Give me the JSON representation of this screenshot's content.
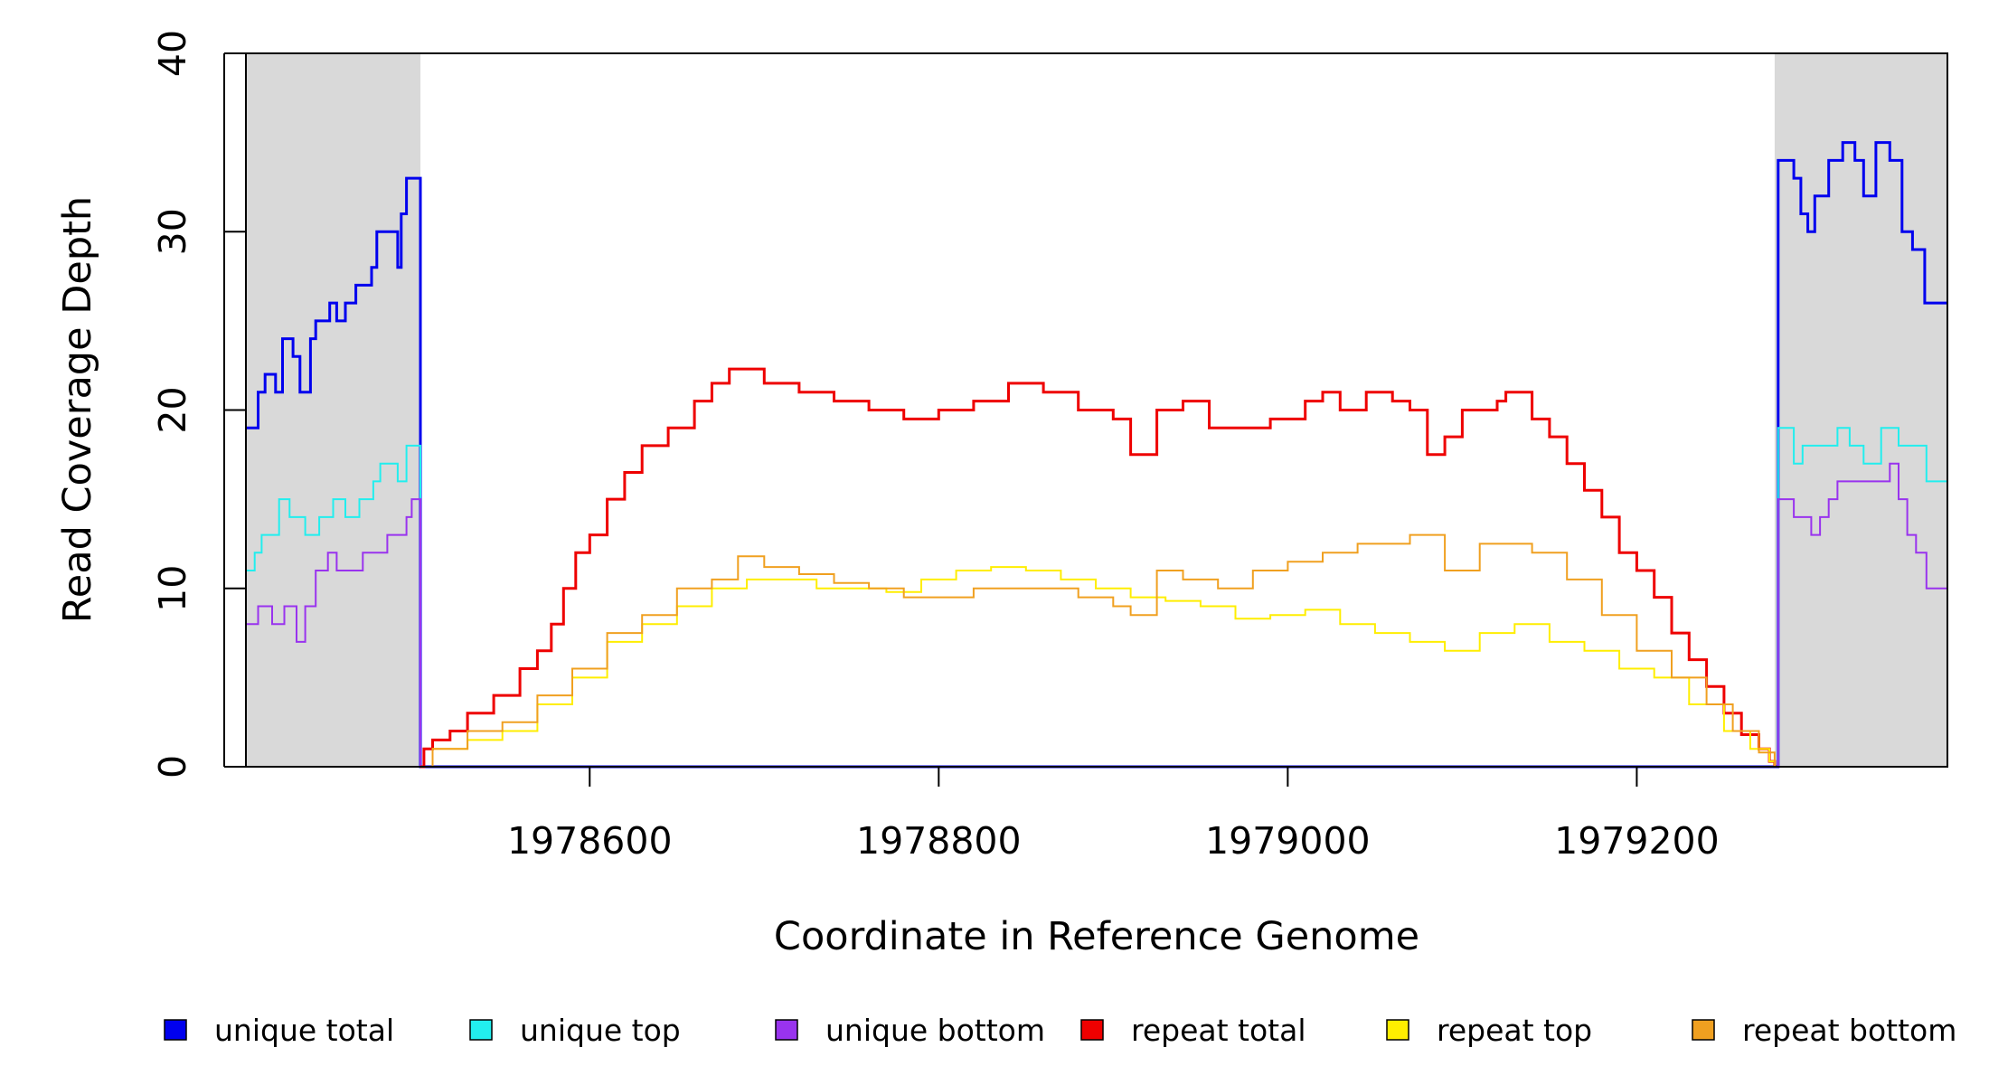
{
  "chart_data": {
    "type": "line",
    "title": "",
    "xlabel": "Coordinate in Reference Genome",
    "ylabel": "Read Coverage Depth",
    "xlim": [
      1978403,
      1979378
    ],
    "ylim": [
      0,
      40
    ],
    "x_ticks": [
      1978600,
      1978800,
      1979000,
      1979200
    ],
    "y_ticks": [
      0,
      10,
      20,
      30,
      40
    ],
    "grid": false,
    "legend_position": "bottom",
    "shaded_regions": [
      {
        "from": 1978403,
        "to": 1978503,
        "color": "#d9d9d9"
      },
      {
        "from": 1979279,
        "to": 1979378,
        "color": "#d9d9d9"
      }
    ],
    "series": [
      {
        "name": "unique total",
        "color": "#0000ee",
        "width": 3,
        "points": [
          [
            1978403,
            19
          ],
          [
            1978410,
            21
          ],
          [
            1978414,
            22
          ],
          [
            1978420,
            21
          ],
          [
            1978424,
            24
          ],
          [
            1978430,
            23
          ],
          [
            1978434,
            21
          ],
          [
            1978440,
            24
          ],
          [
            1978443,
            25
          ],
          [
            1978451,
            26
          ],
          [
            1978455,
            25
          ],
          [
            1978460,
            26
          ],
          [
            1978466,
            27
          ],
          [
            1978475,
            28
          ],
          [
            1978478,
            30
          ],
          [
            1978490,
            28
          ],
          [
            1978492,
            31
          ],
          [
            1978495,
            33
          ],
          [
            1978502,
            33
          ],
          [
            1978503,
            0
          ],
          [
            1979280,
            0
          ],
          [
            1979281,
            34
          ],
          [
            1979290,
            33
          ],
          [
            1979294,
            31
          ],
          [
            1979298,
            30
          ],
          [
            1979302,
            32
          ],
          [
            1979310,
            34
          ],
          [
            1979318,
            35
          ],
          [
            1979325,
            34
          ],
          [
            1979330,
            32
          ],
          [
            1979337,
            35
          ],
          [
            1979345,
            34
          ],
          [
            1979352,
            30
          ],
          [
            1979358,
            29
          ],
          [
            1979365,
            26
          ],
          [
            1979378,
            26
          ]
        ]
      },
      {
        "name": "unique top",
        "color": "#22eeee",
        "width": 2,
        "points": [
          [
            1978403,
            11
          ],
          [
            1978408,
            12
          ],
          [
            1978412,
            13
          ],
          [
            1978422,
            15
          ],
          [
            1978428,
            14
          ],
          [
            1978437,
            13
          ],
          [
            1978445,
            14
          ],
          [
            1978453,
            15
          ],
          [
            1978460,
            14
          ],
          [
            1978468,
            15
          ],
          [
            1978476,
            16
          ],
          [
            1978480,
            17
          ],
          [
            1978490,
            16
          ],
          [
            1978495,
            18
          ],
          [
            1978502,
            18
          ],
          [
            1978503,
            0
          ],
          [
            1979280,
            0
          ],
          [
            1979281,
            19
          ],
          [
            1979290,
            17
          ],
          [
            1979295,
            18
          ],
          [
            1979305,
            18
          ],
          [
            1979315,
            19
          ],
          [
            1979322,
            18
          ],
          [
            1979330,
            17
          ],
          [
            1979340,
            19
          ],
          [
            1979350,
            18
          ],
          [
            1979360,
            18
          ],
          [
            1979366,
            16
          ],
          [
            1979378,
            16
          ]
        ]
      },
      {
        "name": "unique bottom",
        "color": "#9933ee",
        "width": 2,
        "points": [
          [
            1978403,
            8
          ],
          [
            1978410,
            9
          ],
          [
            1978418,
            8
          ],
          [
            1978425,
            9
          ],
          [
            1978432,
            7
          ],
          [
            1978437,
            9
          ],
          [
            1978443,
            11
          ],
          [
            1978450,
            12
          ],
          [
            1978455,
            11
          ],
          [
            1978462,
            11
          ],
          [
            1978470,
            12
          ],
          [
            1978478,
            12
          ],
          [
            1978484,
            13
          ],
          [
            1978495,
            14
          ],
          [
            1978498,
            15
          ],
          [
            1978502,
            15
          ],
          [
            1978503,
            0
          ],
          [
            1979280,
            0
          ],
          [
            1979281,
            15
          ],
          [
            1979290,
            14
          ],
          [
            1979300,
            13
          ],
          [
            1979305,
            14
          ],
          [
            1979310,
            15
          ],
          [
            1979315,
            16
          ],
          [
            1979330,
            16
          ],
          [
            1979340,
            16
          ],
          [
            1979345,
            17
          ],
          [
            1979350,
            15
          ],
          [
            1979355,
            13
          ],
          [
            1979360,
            12
          ],
          [
            1979366,
            10
          ],
          [
            1979378,
            10
          ]
        ]
      },
      {
        "name": "repeat total",
        "color": "#ee0000",
        "width": 3,
        "points": [
          [
            1978503,
            0
          ],
          [
            1978505,
            1
          ],
          [
            1978510,
            1.5
          ],
          [
            1978520,
            2
          ],
          [
            1978530,
            3
          ],
          [
            1978545,
            4
          ],
          [
            1978560,
            5.5
          ],
          [
            1978570,
            6.5
          ],
          [
            1978578,
            8
          ],
          [
            1978585,
            10
          ],
          [
            1978592,
            12
          ],
          [
            1978600,
            13
          ],
          [
            1978610,
            15
          ],
          [
            1978620,
            16.5
          ],
          [
            1978630,
            18
          ],
          [
            1978645,
            19
          ],
          [
            1978660,
            20.5
          ],
          [
            1978670,
            21.5
          ],
          [
            1978680,
            22.3
          ],
          [
            1978690,
            22.3
          ],
          [
            1978700,
            21.5
          ],
          [
            1978720,
            21
          ],
          [
            1978740,
            20.5
          ],
          [
            1978760,
            20
          ],
          [
            1978780,
            19.5
          ],
          [
            1978800,
            20
          ],
          [
            1978820,
            20.5
          ],
          [
            1978840,
            21.5
          ],
          [
            1978860,
            21
          ],
          [
            1978880,
            20
          ],
          [
            1978900,
            19.5
          ],
          [
            1978910,
            17.5
          ],
          [
            1978925,
            20
          ],
          [
            1978940,
            20.5
          ],
          [
            1978955,
            19
          ],
          [
            1978970,
            19
          ],
          [
            1978990,
            19.5
          ],
          [
            1979010,
            20.5
          ],
          [
            1979020,
            21
          ],
          [
            1979030,
            20
          ],
          [
            1979045,
            21
          ],
          [
            1979060,
            20.5
          ],
          [
            1979070,
            20
          ],
          [
            1979080,
            17.5
          ],
          [
            1979090,
            18.5
          ],
          [
            1979100,
            20
          ],
          [
            1979120,
            20.5
          ],
          [
            1979125,
            21
          ],
          [
            1979140,
            19.5
          ],
          [
            1979150,
            18.5
          ],
          [
            1979160,
            17
          ],
          [
            1979170,
            15.5
          ],
          [
            1979180,
            14
          ],
          [
            1979190,
            12
          ],
          [
            1979200,
            11
          ],
          [
            1979210,
            9.5
          ],
          [
            1979220,
            7.5
          ],
          [
            1979230,
            6
          ],
          [
            1979240,
            4.5
          ],
          [
            1979250,
            3
          ],
          [
            1979260,
            1.8
          ],
          [
            1979270,
            1
          ],
          [
            1979276,
            0.3
          ],
          [
            1979279,
            0
          ]
        ]
      },
      {
        "name": "repeat top",
        "color": "#ffee00",
        "width": 2,
        "points": [
          [
            1978503,
            0
          ],
          [
            1978510,
            1
          ],
          [
            1978530,
            1.5
          ],
          [
            1978550,
            2
          ],
          [
            1978570,
            3.5
          ],
          [
            1978590,
            5
          ],
          [
            1978610,
            7
          ],
          [
            1978630,
            8
          ],
          [
            1978650,
            9
          ],
          [
            1978670,
            10
          ],
          [
            1978690,
            10.5
          ],
          [
            1978710,
            10.5
          ],
          [
            1978730,
            10
          ],
          [
            1978750,
            10
          ],
          [
            1978770,
            9.8
          ],
          [
            1978790,
            10.5
          ],
          [
            1978810,
            11
          ],
          [
            1978830,
            11.2
          ],
          [
            1978850,
            11
          ],
          [
            1978870,
            10.5
          ],
          [
            1978890,
            10
          ],
          [
            1978910,
            9.5
          ],
          [
            1978930,
            9.3
          ],
          [
            1978950,
            9
          ],
          [
            1978970,
            8.3
          ],
          [
            1978990,
            8.5
          ],
          [
            1979010,
            8.8
          ],
          [
            1979030,
            8
          ],
          [
            1979050,
            7.5
          ],
          [
            1979070,
            7
          ],
          [
            1979090,
            6.5
          ],
          [
            1979110,
            7.5
          ],
          [
            1979130,
            8
          ],
          [
            1979150,
            7
          ],
          [
            1979170,
            6.5
          ],
          [
            1979190,
            5.5
          ],
          [
            1979210,
            5
          ],
          [
            1979230,
            3.5
          ],
          [
            1979250,
            2
          ],
          [
            1979265,
            1
          ],
          [
            1979276,
            0.3
          ],
          [
            1979279,
            0
          ]
        ]
      },
      {
        "name": "repeat bottom",
        "color": "#f0a020",
        "width": 2,
        "points": [
          [
            1978503,
            0
          ],
          [
            1978510,
            1
          ],
          [
            1978530,
            2
          ],
          [
            1978550,
            2.5
          ],
          [
            1978570,
            4
          ],
          [
            1978590,
            5.5
          ],
          [
            1978610,
            7.5
          ],
          [
            1978630,
            8.5
          ],
          [
            1978650,
            10
          ],
          [
            1978670,
            10.5
          ],
          [
            1978685,
            11.8
          ],
          [
            1978700,
            11.2
          ],
          [
            1978720,
            10.8
          ],
          [
            1978740,
            10.3
          ],
          [
            1978760,
            10
          ],
          [
            1978780,
            9.5
          ],
          [
            1978800,
            9.5
          ],
          [
            1978820,
            10
          ],
          [
            1978840,
            10
          ],
          [
            1978860,
            10
          ],
          [
            1978880,
            9.5
          ],
          [
            1978900,
            9
          ],
          [
            1978910,
            8.5
          ],
          [
            1978925,
            11
          ],
          [
            1978940,
            10.5
          ],
          [
            1978960,
            10
          ],
          [
            1978980,
            11
          ],
          [
            1979000,
            11.5
          ],
          [
            1979020,
            12
          ],
          [
            1979040,
            12.5
          ],
          [
            1979060,
            12.5
          ],
          [
            1979070,
            13
          ],
          [
            1979090,
            11
          ],
          [
            1979110,
            12.5
          ],
          [
            1979130,
            12.5
          ],
          [
            1979140,
            12
          ],
          [
            1979160,
            10.5
          ],
          [
            1979180,
            8.5
          ],
          [
            1979200,
            6.5
          ],
          [
            1979220,
            5
          ],
          [
            1979240,
            3.5
          ],
          [
            1979255,
            2
          ],
          [
            1979270,
            0.8
          ],
          [
            1979279,
            0
          ]
        ]
      }
    ]
  }
}
